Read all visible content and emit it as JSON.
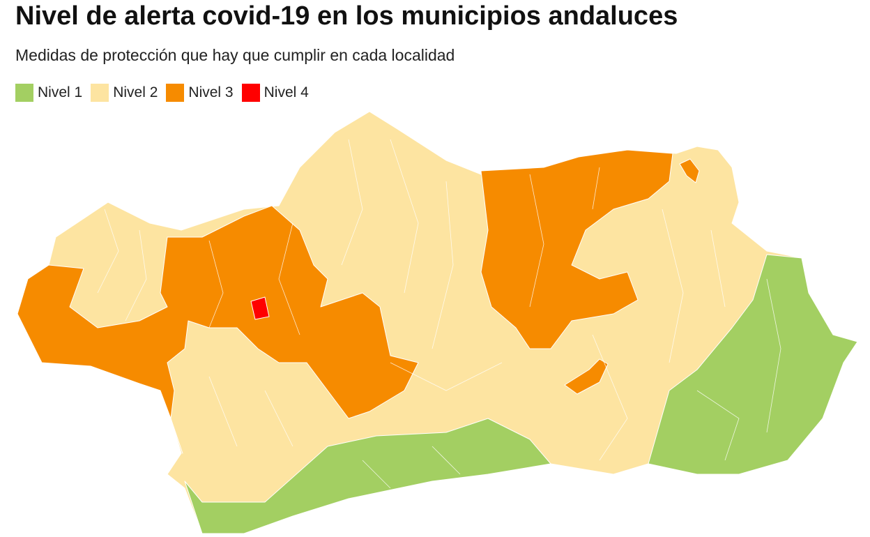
{
  "title": "Nivel de alerta covid-19 en los municipios andaluces",
  "subtitle": "Medidas de protección que hay que cumplir en cada localidad",
  "legend": [
    {
      "label": "Nivel 1",
      "color": "#a3cf62"
    },
    {
      "label": "Nivel 2",
      "color": "#fde4a1"
    },
    {
      "label": "Nivel 3",
      "color": "#f68b00"
    },
    {
      "label": "Nivel 4",
      "color": "#ff0000"
    }
  ]
}
